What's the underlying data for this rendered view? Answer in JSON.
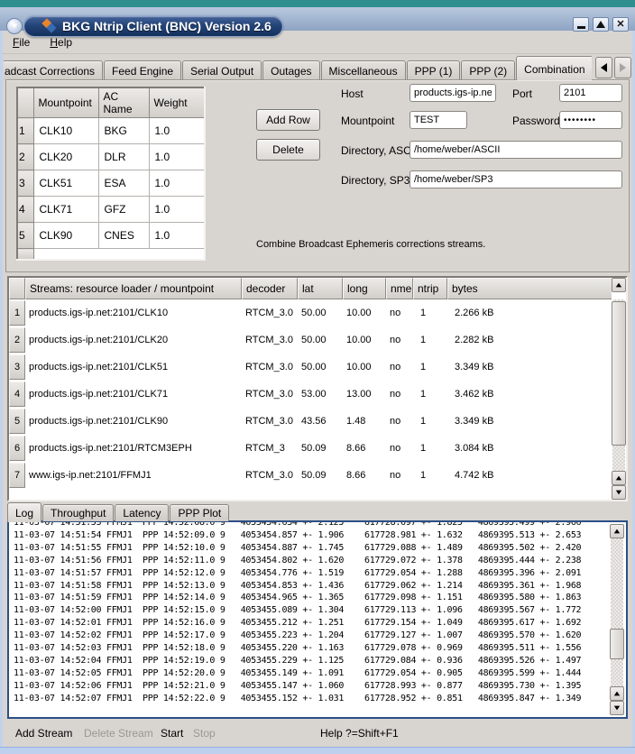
{
  "window": {
    "title": "BKG Ntrip Client (BNC) Version 2.6"
  },
  "menu": {
    "items": [
      {
        "label": "File"
      },
      {
        "label": "Help"
      }
    ]
  },
  "tab_bar": {
    "tabs": [
      "adcast Corrections",
      "Feed Engine",
      "Serial Output",
      "Outages",
      "Miscellaneous",
      "PPP (1)",
      "PPP (2)",
      "Combination"
    ],
    "selected": "Combination"
  },
  "combination": {
    "table": {
      "headers": [
        "Mountpoint",
        "AC Name",
        "Weight"
      ],
      "rows": [
        {
          "num": "1",
          "mountpoint": "CLK10",
          "ac": "BKG",
          "weight": "1.0"
        },
        {
          "num": "2",
          "mountpoint": "CLK20",
          "ac": "DLR",
          "weight": "1.0"
        },
        {
          "num": "3",
          "mountpoint": "CLK51",
          "ac": "ESA",
          "weight": "1.0"
        },
        {
          "num": "4",
          "mountpoint": "CLK71",
          "ac": "GFZ",
          "weight": "1.0"
        },
        {
          "num": "5",
          "mountpoint": "CLK90",
          "ac": "CNES",
          "weight": "1.0"
        }
      ]
    },
    "add_row_label": "Add Row",
    "delete_label": "Delete",
    "form": {
      "host_label": "Host",
      "host_value": "products.igs-ip.net",
      "port_label": "Port",
      "port_value": "2101",
      "mountpoint_label": "Mountpoint",
      "mountpoint_value": "TEST",
      "password_label": "Password",
      "password_value": "••••••••",
      "dir_ascii_label": "Directory, ASCII",
      "dir_ascii_value": "/home/weber/ASCII",
      "dir_sp3_label": "Directory, SP3",
      "dir_sp3_value": "/home/weber/SP3"
    },
    "note": "Combine Broadcast Ephemeris corrections streams."
  },
  "streams": {
    "headers": {
      "name": "Streams:   resource loader / mountpoint",
      "decoder": "decoder",
      "lat": "lat",
      "long": "long",
      "nmea": "nmea",
      "ntrip": "ntrip",
      "bytes": "bytes"
    },
    "rows": [
      {
        "num": "1",
        "name": "products.igs-ip.net:2101/CLK10",
        "decoder": "RTCM_3.0",
        "lat": "50.00",
        "long": "10.00",
        "nmea": "no",
        "ntrip": "1",
        "bytes": "2.266 kB"
      },
      {
        "num": "2",
        "name": "products.igs-ip.net:2101/CLK20",
        "decoder": "RTCM_3.0",
        "lat": "50.00",
        "long": "10.00",
        "nmea": "no",
        "ntrip": "1",
        "bytes": "2.282 kB"
      },
      {
        "num": "3",
        "name": "products.igs-ip.net:2101/CLK51",
        "decoder": "RTCM_3.0",
        "lat": "50.00",
        "long": "10.00",
        "nmea": "no",
        "ntrip": "1",
        "bytes": "3.349 kB"
      },
      {
        "num": "4",
        "name": "products.igs-ip.net:2101/CLK71",
        "decoder": "RTCM_3.0",
        "lat": "53.00",
        "long": "13.00",
        "nmea": "no",
        "ntrip": "1",
        "bytes": "3.462 kB"
      },
      {
        "num": "5",
        "name": "products.igs-ip.net:2101/CLK90",
        "decoder": "RTCM_3.0",
        "lat": "43.56",
        "long": "1.48",
        "nmea": "no",
        "ntrip": "1",
        "bytes": "3.349 kB"
      },
      {
        "num": "6",
        "name": "products.igs-ip.net:2101/RTCM3EPH",
        "decoder": "RTCM_3",
        "lat": "50.09",
        "long": "8.66",
        "nmea": "no",
        "ntrip": "1",
        "bytes": "3.084 kB"
      },
      {
        "num": "7",
        "name": "www.igs-ip.net:2101/FFMJ1",
        "decoder": "RTCM_3.0",
        "lat": "50.09",
        "long": "8.66",
        "nmea": "no",
        "ntrip": "1",
        "bytes": "4.742 kB"
      }
    ]
  },
  "bottom_tabs": [
    "Log",
    "Throughput",
    "Latency",
    "PPP Plot"
  ],
  "log": {
    "lines": [
      "11-03-07 14:51:53 FFMJ1  PPP 14:52:08.0 9   4053454.634 +- 2.125    617728.697 +- 1.825   4869395.499 +- 2.966",
      "11-03-07 14:51:54 FFMJ1  PPP 14:52:09.0 9   4053454.857 +- 1.906    617728.981 +- 1.632   4869395.513 +- 2.653",
      "11-03-07 14:51:55 FFMJ1  PPP 14:52:10.0 9   4053454.887 +- 1.745    617729.088 +- 1.489   4869395.502 +- 2.420",
      "11-03-07 14:51:56 FFMJ1  PPP 14:52:11.0 9   4053454.802 +- 1.620    617729.072 +- 1.378   4869395.444 +- 2.238",
      "11-03-07 14:51:57 FFMJ1  PPP 14:52:12.0 9   4053454.776 +- 1.519    617729.054 +- 1.288   4869395.396 +- 2.091",
      "11-03-07 14:51:58 FFMJ1  PPP 14:52:13.0 9   4053454.853 +- 1.436    617729.062 +- 1.214   4869395.361 +- 1.968",
      "11-03-07 14:51:59 FFMJ1  PPP 14:52:14.0 9   4053454.965 +- 1.365    617729.098 +- 1.151   4869395.580 +- 1.863",
      "11-03-07 14:52:00 FFMJ1  PPP 14:52:15.0 9   4053455.089 +- 1.304    617729.113 +- 1.096   4869395.567 +- 1.772",
      "11-03-07 14:52:01 FFMJ1  PPP 14:52:16.0 9   4053455.212 +- 1.251    617729.154 +- 1.049   4869395.617 +- 1.692",
      "11-03-07 14:52:02 FFMJ1  PPP 14:52:17.0 9   4053455.223 +- 1.204    617729.127 +- 1.007   4869395.570 +- 1.620",
      "11-03-07 14:52:03 FFMJ1  PPP 14:52:18.0 9   4053455.220 +- 1.163    617729.078 +- 0.969   4869395.511 +- 1.556",
      "11-03-07 14:52:04 FFMJ1  PPP 14:52:19.0 9   4053455.229 +- 1.125    617729.084 +- 0.936   4869395.526 +- 1.497",
      "11-03-07 14:52:05 FFMJ1  PPP 14:52:20.0 9   4053455.149 +- 1.091    617729.054 +- 0.905   4869395.599 +- 1.444",
      "11-03-07 14:52:06 FFMJ1  PPP 14:52:21.0 9   4053455.147 +- 1.060    617728.993 +- 0.877   4869395.730 +- 1.395",
      "11-03-07 14:52:07 FFMJ1  PPP 14:52:22.0 9   4053455.152 +- 1.031    617728.952 +- 0.851   4869395.847 +- 1.349"
    ]
  },
  "actions": [
    {
      "label": "Add Stream",
      "enabled": true
    },
    {
      "label": "Delete Stream",
      "enabled": false
    },
    {
      "label": "Start",
      "enabled": true
    },
    {
      "label": "Stop",
      "enabled": false
    },
    {
      "label": "Help ?=Shift+F1",
      "enabled": true
    }
  ],
  "colors": {
    "desktop_teal": "#2f8f8f",
    "title_pill": "#24457a",
    "dialog_bg": "#d8d4d0",
    "focus_border": "#2c4f86",
    "window_border": "#bed0ee"
  }
}
